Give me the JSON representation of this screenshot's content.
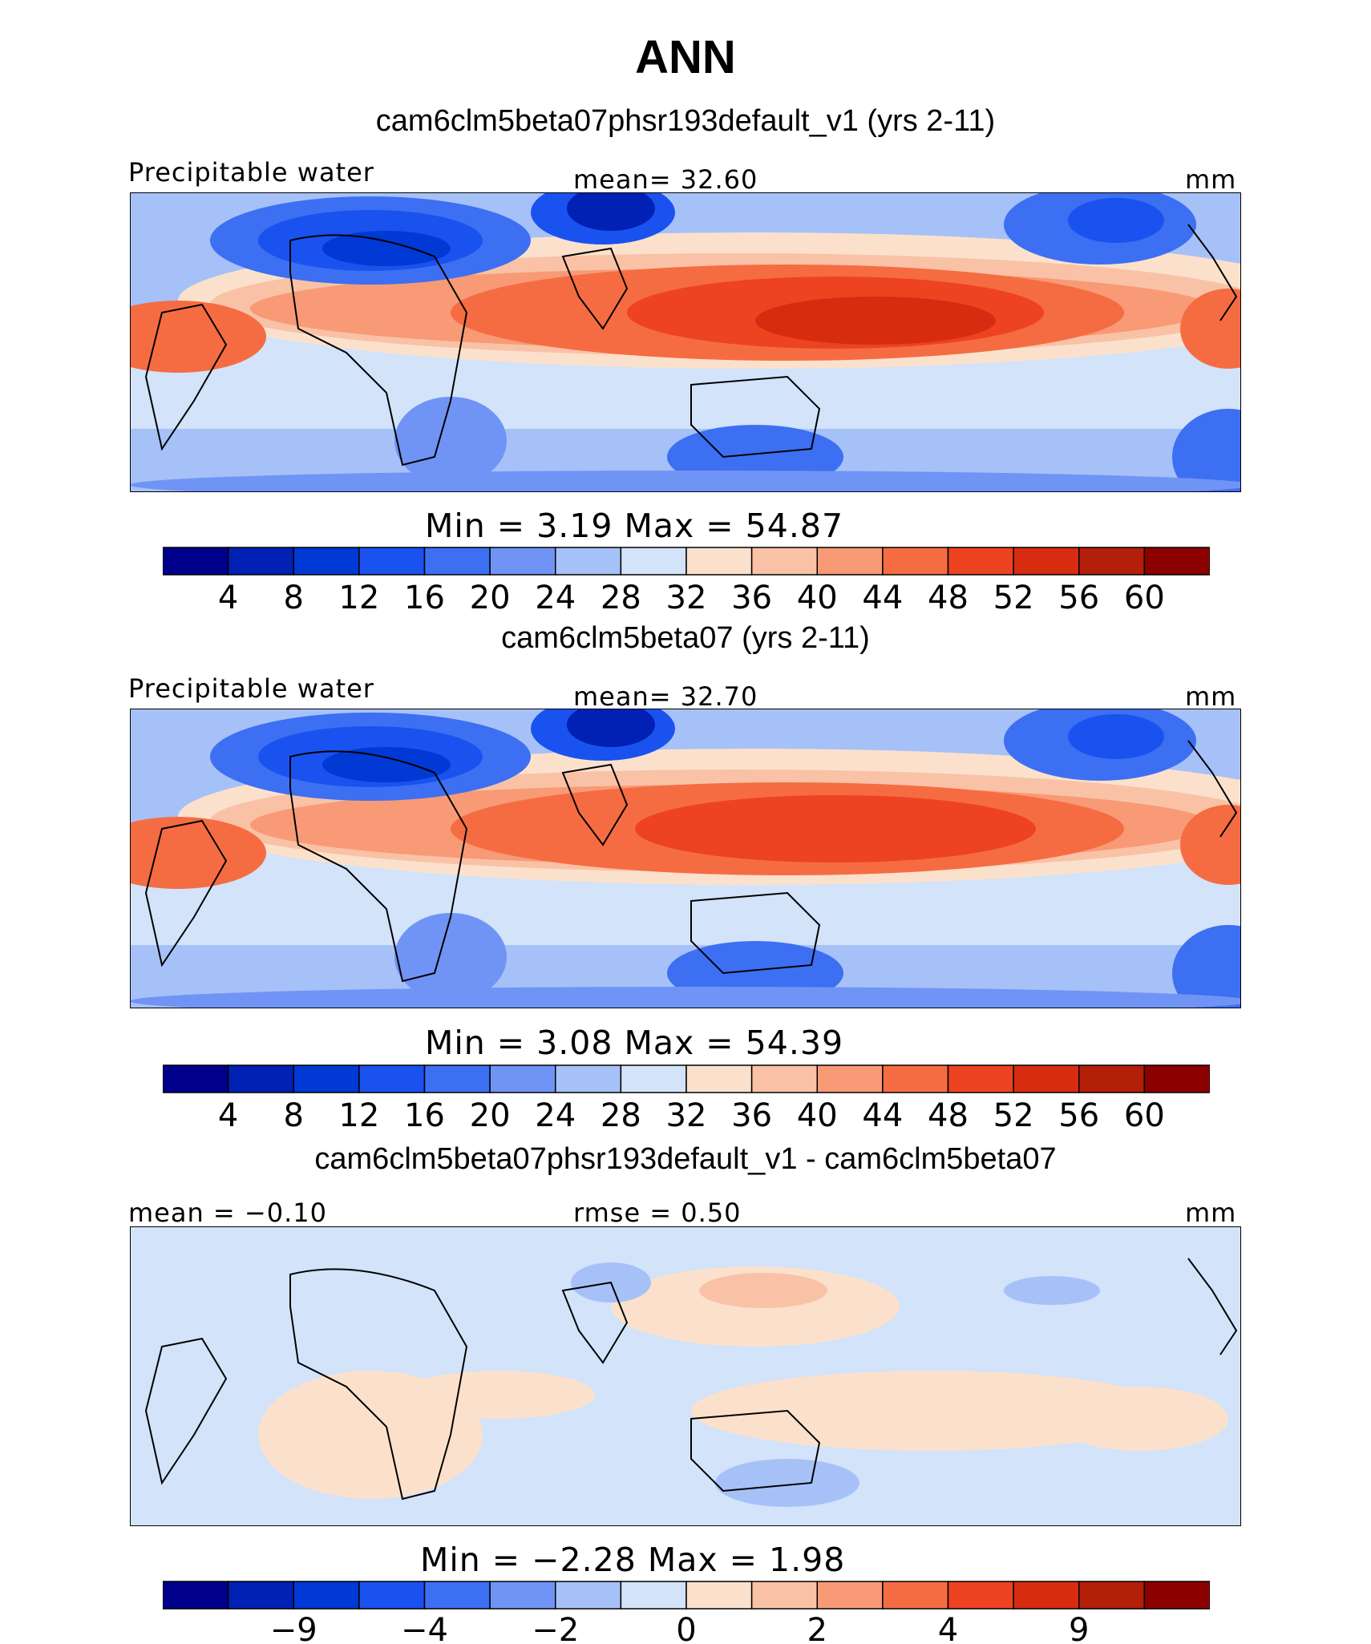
{
  "title": "ANN",
  "colors": [
    "#00008c",
    "#0021b3",
    "#0039d4",
    "#1a52f0",
    "#3d6ff2",
    "#7094f5",
    "#a6c1f7",
    "#d2e3fa",
    "#fbe1cc",
    "#f9c2a6",
    "#f89a76",
    "#f56c43",
    "#ee4320",
    "#d72c10",
    "#b41f0a",
    "#8c0000"
  ],
  "panels": [
    {
      "title": "cam6clm5beta07phsr193default_v1 (yrs 2-11)",
      "left_label": "Precipitable water",
      "center_label": "mean=   32.60",
      "units": "mm",
      "minmax": "Min  =    3.19  Max  =   54.87",
      "ticks": [
        "4",
        "8",
        "12",
        "16",
        "20",
        "24",
        "28",
        "32",
        "36",
        "40",
        "44",
        "48",
        "52",
        "56",
        "60"
      ]
    },
    {
      "title": "cam6clm5beta07 (yrs 2-11)",
      "left_label": "Precipitable water",
      "center_label": "mean=   32.70",
      "units": "mm",
      "minmax": "Min  =    3.08  Max  =   54.39",
      "ticks": [
        "4",
        "8",
        "12",
        "16",
        "20",
        "24",
        "28",
        "32",
        "36",
        "40",
        "44",
        "48",
        "52",
        "56",
        "60"
      ]
    },
    {
      "title": "cam6clm5beta07phsr193default_v1 - cam6clm5beta07",
      "left_label": "mean =   −0.10",
      "center_label": "rmse =    0.50",
      "units": "mm",
      "minmax": "Min  =   −2.28  Max  =    1.98",
      "ticks": [
        "",
        "−9",
        "",
        "−4",
        "",
        "−2",
        "",
        "0",
        "",
        "2",
        "",
        "4",
        "",
        "9",
        ""
      ]
    }
  ],
  "chart_data": [
    {
      "type": "heatmap",
      "title": "cam6clm5beta07phsr193default_v1 (yrs 2-11)",
      "variable": "Precipitable water",
      "units": "mm",
      "mean": 32.6,
      "min": 3.19,
      "max": 54.87,
      "contour_levels": [
        4,
        8,
        12,
        16,
        20,
        24,
        28,
        32,
        36,
        40,
        44,
        48,
        52,
        56,
        60
      ]
    },
    {
      "type": "heatmap",
      "title": "cam6clm5beta07 (yrs 2-11)",
      "variable": "Precipitable water",
      "units": "mm",
      "mean": 32.7,
      "min": 3.08,
      "max": 54.39,
      "contour_levels": [
        4,
        8,
        12,
        16,
        20,
        24,
        28,
        32,
        36,
        40,
        44,
        48,
        52,
        56,
        60
      ]
    },
    {
      "type": "heatmap",
      "title": "cam6clm5beta07phsr193default_v1 - cam6clm5beta07",
      "units": "mm",
      "mean": -0.1,
      "rmse": 0.5,
      "min": -2.28,
      "max": 1.98,
      "contour_tick_labels": [
        "-9",
        "-4",
        "-2",
        "0",
        "2",
        "4",
        "9"
      ]
    }
  ]
}
